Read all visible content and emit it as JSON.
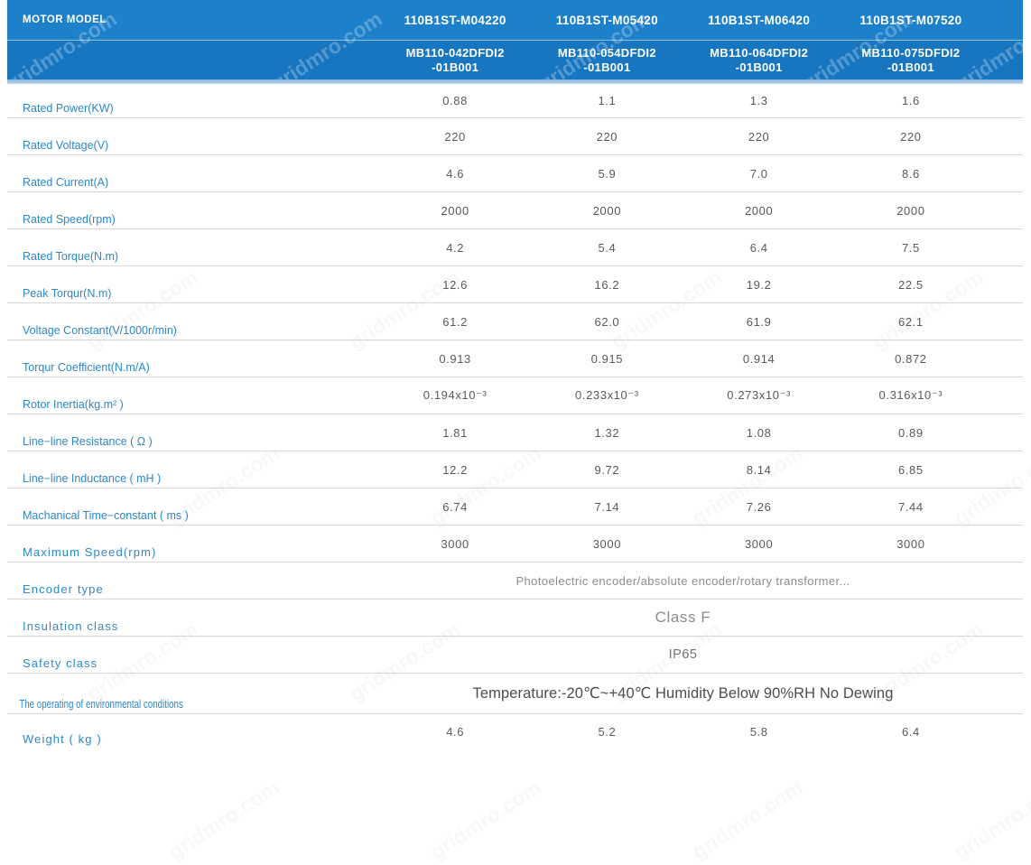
{
  "watermark": {
    "text": "gridmro.com"
  },
  "colors": {
    "header_top": "#1d80cb",
    "header_bottom": "#1876c1",
    "header_edge": "#85b4de",
    "label_blue": "#2d87c8",
    "value_gray": "#58595b",
    "row_line": "#d7d7d7"
  },
  "header": {
    "title": "MOTOR MODEL",
    "models": [
      "110B1ST-M04220",
      "110B1ST-M05420",
      "110B1ST-M06420",
      "110B1ST-M07520"
    ],
    "codes": [
      "MB110-042DFDI2\n-01B001",
      "MB110-054DFDI2\n-01B001",
      "MB110-064DFDI2\n-01B001",
      "MB110-075DFDI2\n-01B001"
    ]
  },
  "rows": [
    {
      "label": "Rated Power(KW)",
      "values": [
        "0.88",
        "1.1",
        "1.3",
        "1.6"
      ]
    },
    {
      "label": "Rated Voltage(V)",
      "values": [
        "220",
        "220",
        "220",
        "220"
      ]
    },
    {
      "label": "Rated Current(A)",
      "values": [
        "4.6",
        "5.9",
        "7.0",
        "8.6"
      ]
    },
    {
      "label": "Rated Speed(rpm)",
      "values": [
        "2000",
        "2000",
        "2000",
        "2000"
      ]
    },
    {
      "label": "Rated Torque(N.m)",
      "values": [
        "4.2",
        "5.4",
        "6.4",
        "7.5"
      ]
    },
    {
      "label": "Peak Torqur(N.m)",
      "values": [
        "12.6",
        "16.2",
        "19.2",
        "22.5"
      ]
    },
    {
      "label": "Voltage Constant(V/1000r/min)",
      "values": [
        "61.2",
        "62.0",
        "61.9",
        "62.1"
      ]
    },
    {
      "label": "Torqur Coefficient(N.m/A)",
      "values": [
        "0.913",
        "0.915",
        "0.914",
        "0.872"
      ]
    },
    {
      "label": "Rotor Inertia(kg.m² )",
      "values": [
        "0.194x10⁻³",
        "0.233x10⁻³",
        "0.273x10⁻³",
        "0.316x10⁻³"
      ]
    },
    {
      "label": "Line−line Resistance ( Ω )",
      "values": [
        "1.81",
        "1.32",
        "1.08",
        "0.89"
      ]
    },
    {
      "label": "Line−line Inductance ( mH )",
      "values": [
        "12.2",
        "9.72",
        "8.14",
        "6.85"
      ]
    },
    {
      "label": "Machanical Time−constant ( ms )",
      "values": [
        "6.74",
        "7.14",
        "7.26",
        "7.44"
      ]
    },
    {
      "label": "Maximum Speed(rpm)",
      "label_style": "spaced",
      "values": [
        "3000",
        "3000",
        "3000",
        "3000"
      ]
    },
    {
      "label": "Encoder type",
      "label_style": "spaced",
      "span": "Photoelectric encoder/absolute encoder/rotary transformer...",
      "span_style": "encoder"
    },
    {
      "label": "Insulation class",
      "label_style": "spaced",
      "span": "Class F",
      "span_style": "classf"
    },
    {
      "label": "Safety class",
      "label_style": "spaced",
      "span": "IP65",
      "span_style": "ip"
    },
    {
      "label": "The operating of environmental conditions",
      "label_style": "cond",
      "span": "Temperature:-20℃~+40℃  Humidity Below 90%RH No Dewing",
      "span_style": "temp"
    },
    {
      "label": "Weight ( kg )",
      "label_style": "spaced",
      "values": [
        "4.6",
        "5.2",
        "5.8",
        "6.4"
      ]
    }
  ]
}
